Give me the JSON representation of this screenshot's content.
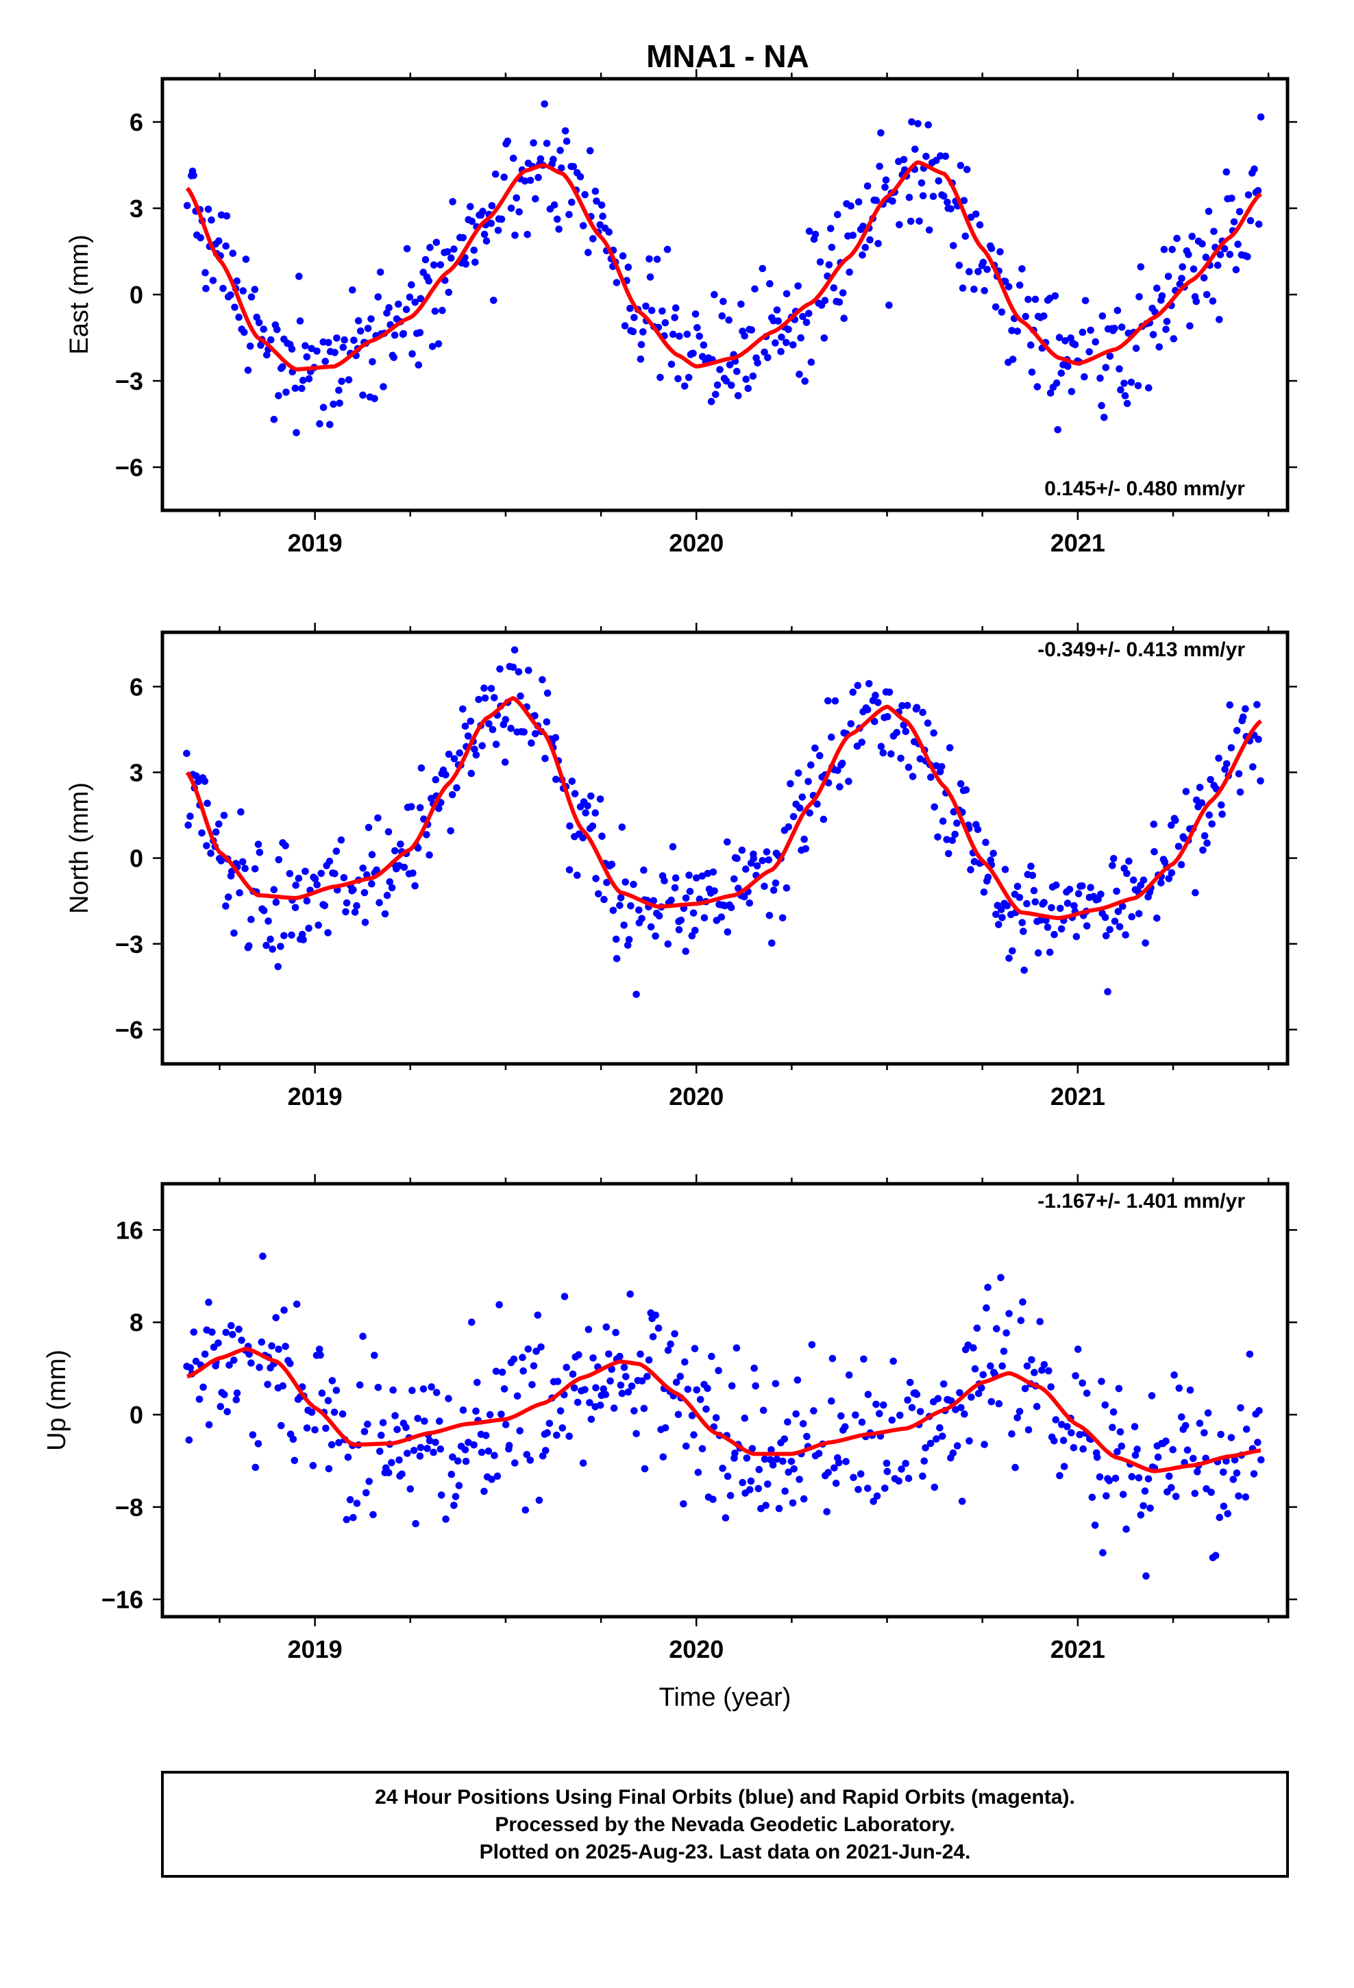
{
  "title": "MNA1 - NA",
  "footer": {
    "line1": "24 Hour Positions Using Final Orbits (blue) and Rapid Orbits (magenta).",
    "line2": "Processed by the Nevada Geodetic Laboratory.",
    "line3": "Plotted on 2025-Aug-23. Last data on 2021-Jun-24."
  },
  "colors": {
    "points": "#0000ff",
    "fit": "#ff0000",
    "frame": "#000000"
  },
  "chart_data": [
    {
      "type": "scatter",
      "panel": "east",
      "ylabel": "East (mm)",
      "xlim": [
        2018.6,
        2021.55
      ],
      "ylim": [
        -7.5,
        7.5
      ],
      "xticks": [
        2019,
        2020,
        2021
      ],
      "yticks": [
        -6,
        -3,
        0,
        3,
        6
      ],
      "rate_text": "0.145+/- 0.480 mm/yr",
      "rate_position": "bottom-right",
      "series": [
        {
          "kind": "points",
          "x_start": 2018.665,
          "x_end": 2021.48,
          "n": 620,
          "noise_mm": 1.1,
          "fit_x": [
            2018.665,
            2018.75,
            2018.85,
            2018.95,
            2019.05,
            2019.15,
            2019.25,
            2019.35,
            2019.45,
            2019.55,
            2019.6,
            2019.65,
            2019.75,
            2019.85,
            2019.95,
            2020.0,
            2020.1,
            2020.2,
            2020.3,
            2020.4,
            2020.5,
            2020.58,
            2020.65,
            2020.75,
            2020.85,
            2020.95,
            2021.0,
            2021.1,
            2021.2,
            2021.3,
            2021.4,
            2021.48
          ],
          "fit_y": [
            3.7,
            1.2,
            -1.5,
            -2.6,
            -2.5,
            -1.6,
            -0.8,
            0.8,
            2.6,
            4.3,
            4.5,
            4.2,
            2.0,
            -0.6,
            -2.1,
            -2.5,
            -2.2,
            -1.3,
            -0.3,
            1.3,
            3.4,
            4.6,
            4.2,
            1.6,
            -0.9,
            -2.2,
            -2.4,
            -1.9,
            -0.8,
            0.5,
            2.0,
            3.5
          ]
        },
        {
          "kind": "fit"
        }
      ]
    },
    {
      "type": "scatter",
      "panel": "north",
      "ylabel": "North (mm)",
      "xlim": [
        2018.6,
        2021.55
      ],
      "ylim": [
        -7.2,
        7.9
      ],
      "xticks": [
        2019,
        2020,
        2021
      ],
      "yticks": [
        -6,
        -3,
        0,
        3,
        6
      ],
      "rate_text": "-0.349+/- 0.413 mm/yr",
      "rate_position": "top-right",
      "series": [
        {
          "kind": "points",
          "x_start": 2018.665,
          "x_end": 2021.48,
          "n": 620,
          "noise_mm": 1.0,
          "fit_x": [
            2018.665,
            2018.75,
            2018.85,
            2018.95,
            2019.05,
            2019.15,
            2019.25,
            2019.35,
            2019.45,
            2019.52,
            2019.6,
            2019.7,
            2019.8,
            2019.9,
            2020.0,
            2020.1,
            2020.2,
            2020.3,
            2020.4,
            2020.5,
            2020.55,
            2020.65,
            2020.75,
            2020.85,
            2020.95,
            2021.05,
            2021.15,
            2021.25,
            2021.35,
            2021.48
          ],
          "fit_y": [
            3.0,
            0.2,
            -1.3,
            -1.4,
            -1.0,
            -0.7,
            0.3,
            2.6,
            4.9,
            5.6,
            4.4,
            1.0,
            -1.2,
            -1.7,
            -1.6,
            -1.3,
            -0.4,
            1.9,
            4.3,
            5.3,
            4.8,
            2.5,
            -0.1,
            -1.9,
            -2.1,
            -1.8,
            -1.4,
            -0.2,
            2.0,
            4.8
          ]
        },
        {
          "kind": "fit"
        }
      ]
    },
    {
      "type": "scatter",
      "panel": "up",
      "ylabel": "Up (mm)",
      "xlabel": "Time (year)",
      "xlim": [
        2018.6,
        2021.55
      ],
      "ylim": [
        -17.5,
        20.0
      ],
      "xticks": [
        2019,
        2020,
        2021
      ],
      "yticks": [
        -16,
        -8,
        0,
        8,
        16
      ],
      "ytick_labels": [
        "−16",
        "−8",
        "0",
        "8",
        "16"
      ],
      "rate_text": "-1.167+/- 1.401 mm/yr",
      "rate_position": "top-right",
      "series": [
        {
          "kind": "points",
          "x_start": 2018.665,
          "x_end": 2021.48,
          "n": 620,
          "noise_mm": 3.6,
          "fit_x": [
            2018.665,
            2018.75,
            2018.82,
            2018.9,
            2019.0,
            2019.1,
            2019.2,
            2019.3,
            2019.4,
            2019.5,
            2019.6,
            2019.7,
            2019.8,
            2019.85,
            2019.95,
            2020.05,
            2020.15,
            2020.25,
            2020.35,
            2020.45,
            2020.55,
            2020.65,
            2020.75,
            2020.82,
            2020.9,
            2021.0,
            2021.1,
            2021.2,
            2021.3,
            2021.4,
            2021.48
          ],
          "fit_y": [
            3.3,
            4.9,
            5.7,
            4.6,
            0.6,
            -2.6,
            -2.5,
            -1.6,
            -0.8,
            -0.4,
            1.0,
            3.2,
            4.6,
            4.4,
            1.8,
            -1.6,
            -3.4,
            -3.4,
            -2.4,
            -1.7,
            -1.2,
            0.4,
            2.8,
            3.6,
            2.4,
            -0.9,
            -3.7,
            -4.9,
            -4.4,
            -3.6,
            -3.1
          ]
        },
        {
          "kind": "fit"
        }
      ]
    }
  ]
}
